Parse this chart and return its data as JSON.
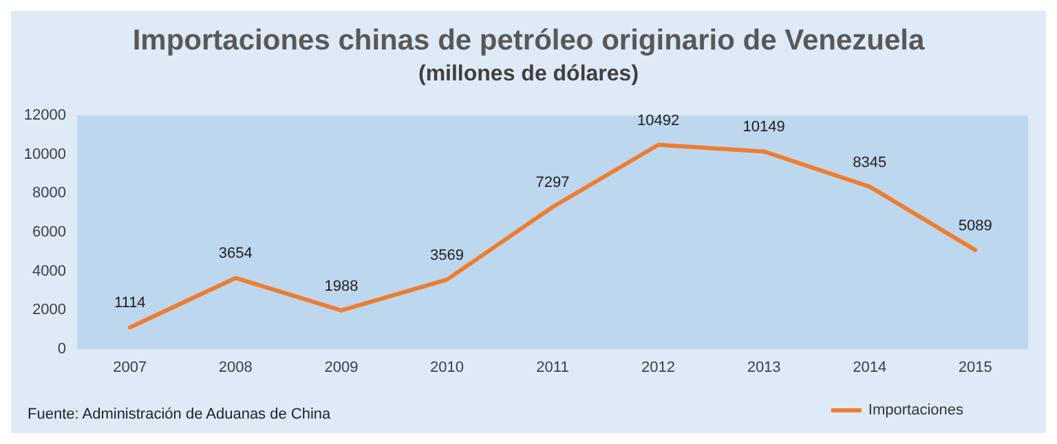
{
  "chart_data": {
    "type": "line",
    "title": "Importaciones chinas de petróleo originario de Venezuela",
    "subtitle": "(millones de dólares)",
    "categories": [
      "2007",
      "2008",
      "2009",
      "2010",
      "2011",
      "2012",
      "2013",
      "2014",
      "2015"
    ],
    "series": [
      {
        "name": "Importaciones",
        "color": "#ed7d31",
        "values": [
          1114,
          3654,
          1988,
          3569,
          7297,
          10492,
          10149,
          8345,
          5089
        ]
      }
    ],
    "ylim": [
      0,
      12000
    ],
    "yticks": [
      0,
      2000,
      4000,
      6000,
      8000,
      10000,
      12000
    ],
    "grid": false,
    "legend": "bottom right",
    "data_labels": true,
    "marker": "none",
    "line_style": "solid",
    "annotations": [
      "Fuente: Administración de Aduanas de China"
    ]
  }
}
